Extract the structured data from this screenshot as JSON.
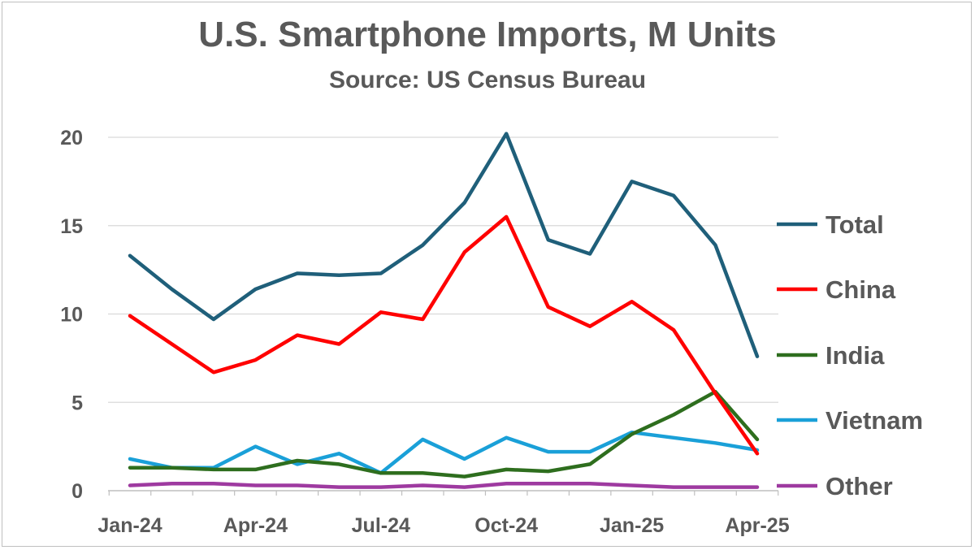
{
  "chart_data": {
    "type": "line",
    "title": "U.S. Smartphone Imports, M Units",
    "subtitle": "Source: US Census Bureau",
    "xlabel": "",
    "ylabel": "",
    "x": [
      "Jan-24",
      "Feb-24",
      "Mar-24",
      "Apr-24",
      "May-24",
      "Jun-24",
      "Jul-24",
      "Aug-24",
      "Sep-24",
      "Oct-24",
      "Nov-24",
      "Dec-24",
      "Jan-25",
      "Feb-25",
      "Mar-25",
      "Apr-25"
    ],
    "x_tick_labels": [
      "Jan-24",
      "Apr-24",
      "Jul-24",
      "Oct-24",
      "Jan-25",
      "Apr-25"
    ],
    "y_ticks": [
      0,
      5,
      10,
      15,
      20
    ],
    "ylim": [
      0,
      20
    ],
    "grid": true,
    "legend": "right",
    "series": [
      {
        "name": "Total",
        "color": "#1f5f7a",
        "values": [
          13.3,
          11.4,
          9.7,
          11.4,
          12.3,
          12.2,
          12.3,
          13.9,
          16.3,
          20.2,
          14.2,
          13.4,
          17.5,
          16.7,
          13.9,
          7.6
        ]
      },
      {
        "name": "China",
        "color": "#ff0000",
        "values": [
          9.9,
          8.3,
          6.7,
          7.4,
          8.8,
          8.3,
          10.1,
          9.7,
          13.5,
          15.5,
          10.4,
          9.3,
          10.7,
          9.1,
          5.5,
          2.1
        ]
      },
      {
        "name": "India",
        "color": "#2e6e1e",
        "values": [
          1.3,
          1.3,
          1.2,
          1.2,
          1.7,
          1.5,
          1.0,
          1.0,
          0.8,
          1.2,
          1.1,
          1.5,
          3.2,
          4.3,
          5.6,
          2.9
        ]
      },
      {
        "name": "Vietnam",
        "color": "#1aa0d8",
        "values": [
          1.8,
          1.3,
          1.3,
          2.5,
          1.5,
          2.1,
          1.0,
          2.9,
          1.8,
          3.0,
          2.2,
          2.2,
          3.3,
          3.0,
          2.7,
          2.3
        ]
      },
      {
        "name": "Other",
        "color": "#9e3aa0",
        "values": [
          0.3,
          0.4,
          0.4,
          0.3,
          0.3,
          0.2,
          0.2,
          0.3,
          0.2,
          0.4,
          0.4,
          0.4,
          0.3,
          0.2,
          0.2,
          0.2
        ]
      }
    ]
  }
}
